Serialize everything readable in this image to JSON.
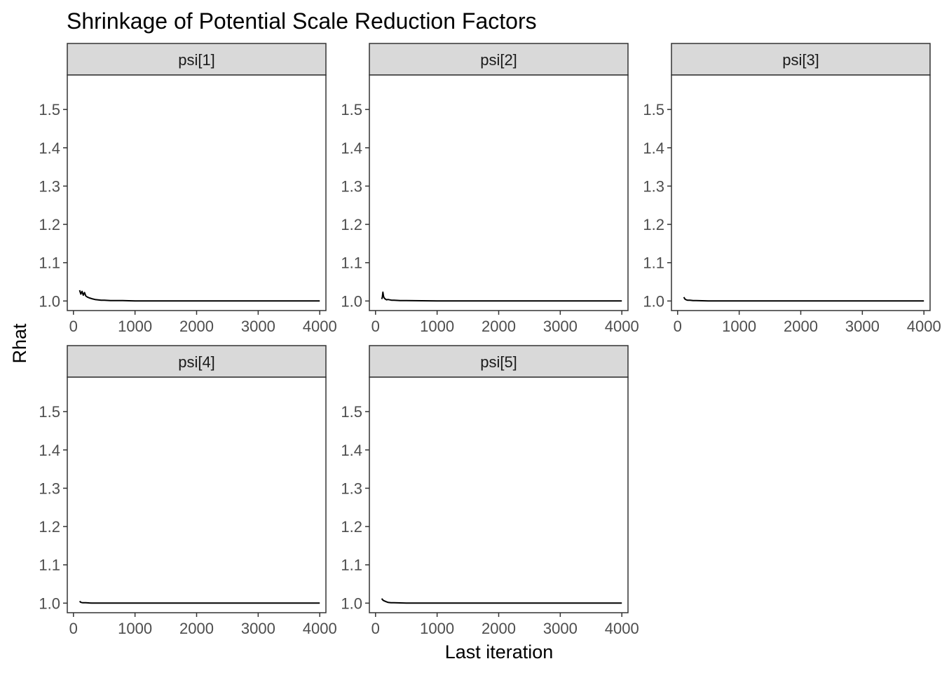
{
  "chart_data": {
    "type": "line",
    "title": "Shrinkage of Potential Scale Reduction Factors",
    "xlabel": "Last iteration",
    "ylabel": "Rhat",
    "xlim": [
      -100,
      4100
    ],
    "ylim": [
      0.975,
      1.59
    ],
    "x_ticks": [
      0,
      1000,
      2000,
      3000,
      4000
    ],
    "y_ticks": [
      1.0,
      1.1,
      1.2,
      1.3,
      1.4,
      1.5
    ],
    "grid": false,
    "layout": "facet_wrap, 2 rows x 3 columns",
    "panels": [
      {
        "label": "psi[1]",
        "x": [
          100,
          120,
          140,
          160,
          180,
          200,
          230,
          260,
          300,
          350,
          400,
          450,
          500,
          600,
          800,
          1000,
          1500,
          2000,
          3000,
          4000
        ],
        "y": [
          1.028,
          1.018,
          1.025,
          1.015,
          1.022,
          1.013,
          1.01,
          1.008,
          1.006,
          1.004,
          1.003,
          1.002,
          1.002,
          1.001,
          1.001,
          1.0,
          1.0,
          1.0,
          1.0,
          1.0
        ]
      },
      {
        "label": "psi[2]",
        "x": [
          100,
          110,
          120,
          130,
          140,
          160,
          180,
          200,
          230,
          260,
          300,
          400,
          500,
          1000,
          2000,
          3000,
          4000
        ],
        "y": [
          1.005,
          1.01,
          1.023,
          1.012,
          1.008,
          1.005,
          1.003,
          1.004,
          1.003,
          1.002,
          1.002,
          1.001,
          1.001,
          1.0,
          1.0,
          1.0,
          1.0
        ]
      },
      {
        "label": "psi[3]",
        "x": [
          100,
          120,
          140,
          160,
          200,
          250,
          300,
          500,
          1000,
          2000,
          3000,
          4000
        ],
        "y": [
          1.01,
          1.005,
          1.003,
          1.002,
          1.002,
          1.001,
          1.001,
          1.0,
          1.0,
          1.0,
          1.0,
          1.0
        ],
        "show_x_ticks": true
      },
      {
        "label": "psi[4]",
        "x": [
          100,
          120,
          150,
          200,
          300,
          500,
          1000,
          2000,
          3000,
          4000
        ],
        "y": [
          1.005,
          1.002,
          1.001,
          1.001,
          1.0,
          1.0,
          1.0,
          1.0,
          1.0,
          1.0
        ]
      },
      {
        "label": "psi[5]",
        "x": [
          100,
          120,
          140,
          170,
          200,
          250,
          300,
          500,
          1000,
          2000,
          3000,
          4000
        ],
        "y": [
          1.012,
          1.008,
          1.006,
          1.004,
          1.002,
          1.001,
          1.001,
          1.0,
          1.0,
          1.0,
          1.0,
          1.0
        ]
      }
    ]
  }
}
